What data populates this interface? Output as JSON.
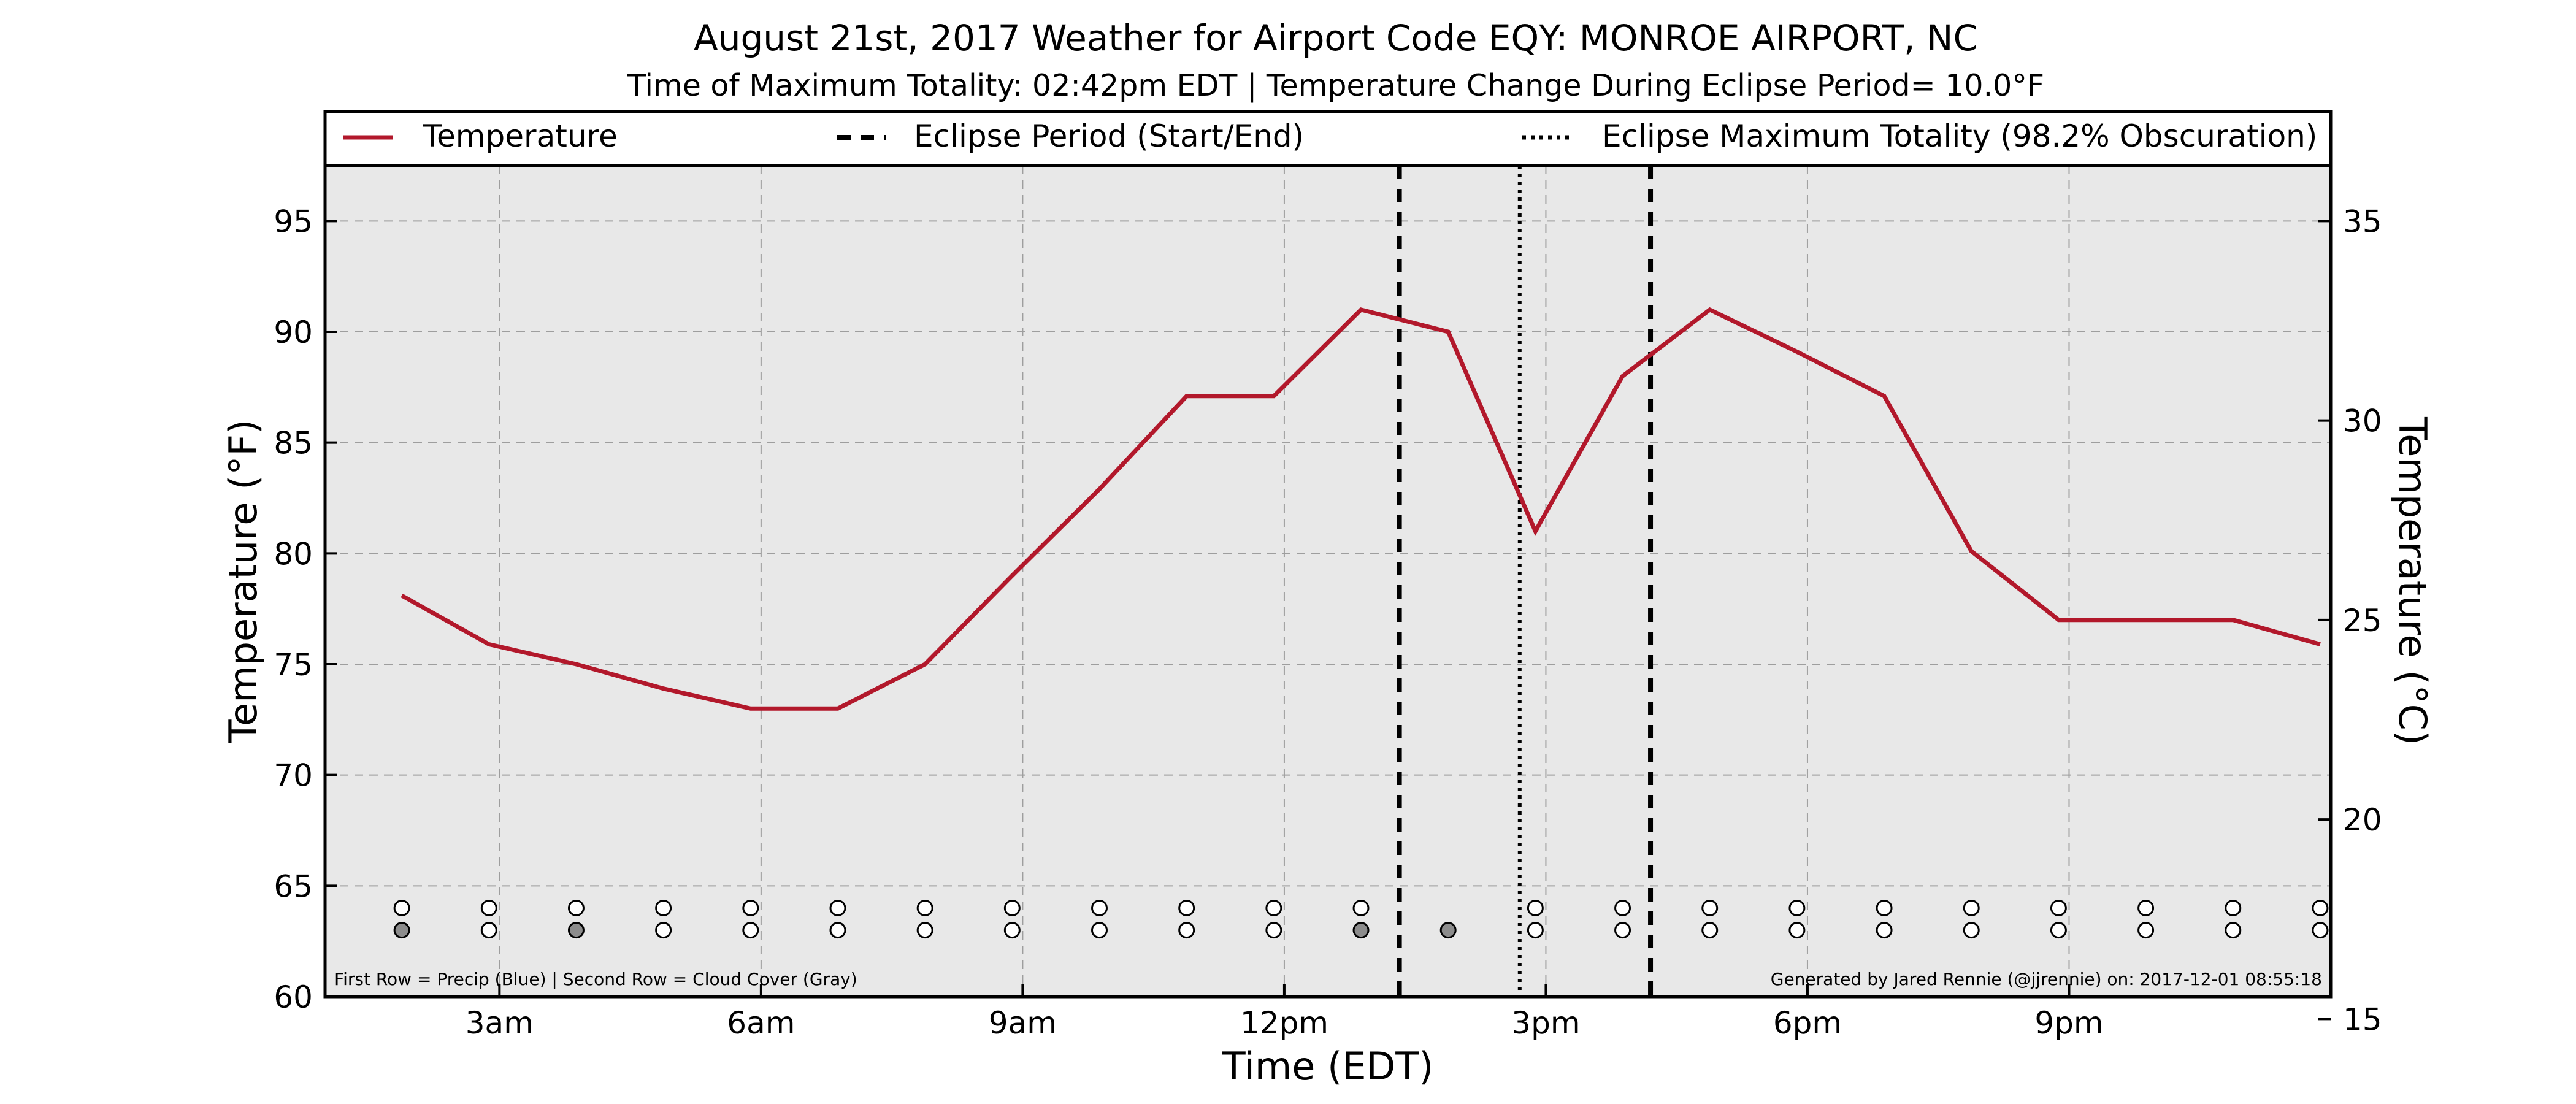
{
  "title": "August 21st, 2017 Weather for Airport Code EQY: MONROE AIRPORT, NC",
  "subtitle": "Time of Maximum Totality: 02:42pm EDT | Temperature Change During Eclipse Period= 10.0°F",
  "footnote_left": "First Row = Precip (Blue) | Second Row = Cloud Cover (Gray)",
  "footnote_right": "Generated by Jared Rennie (@jjrennie) on: 2017-12-01 08:55:18",
  "colors": {
    "temperature_line": "#b2182b",
    "plot_background": "#e8e8e8",
    "grid": "#9e9e9e",
    "cloud_filled": "#8c8c8c",
    "marker_empty": "#ffffff"
  },
  "chart_data": {
    "type": "line",
    "title": "August 21st, 2017 Weather for Airport Code EQY: MONROE AIRPORT, NC",
    "xlabel": "Time (EDT)",
    "ylabel": "Temperature (°F)",
    "ylabel_right": "Temperature (°C)",
    "xlim": [
      1.0,
      24.0
    ],
    "ylim": [
      60,
      97.5
    ],
    "ylim_right": [
      15.56,
      36.39
    ],
    "grid": true,
    "x_ticks": [
      {
        "value": 3,
        "label": "3am"
      },
      {
        "value": 6,
        "label": "6am"
      },
      {
        "value": 9,
        "label": "9am"
      },
      {
        "value": 12,
        "label": "12pm"
      },
      {
        "value": 15,
        "label": "3pm"
      },
      {
        "value": 18,
        "label": "6pm"
      },
      {
        "value": 21,
        "label": "9pm"
      }
    ],
    "y_ticks": [
      60,
      65,
      70,
      75,
      80,
      85,
      90,
      95
    ],
    "y_ticks_right": [
      15,
      20,
      25,
      30,
      35
    ],
    "legend_position": "top",
    "legend": [
      {
        "label": "Temperature",
        "style": "solid-red"
      },
      {
        "label": "Eclipse Period (Start/End)",
        "style": "dashed-black"
      },
      {
        "label": "Eclipse Maximum Totality (98.2% Obscuration)",
        "style": "dotted-black"
      }
    ],
    "series": [
      {
        "name": "Temperature",
        "x": [
          1.88,
          2.88,
          3.88,
          4.88,
          5.88,
          6.88,
          7.88,
          8.88,
          9.88,
          10.88,
          11.88,
          12.88,
          13.88,
          14.88,
          15.88,
          16.88,
          17.88,
          18.88,
          19.88,
          20.88,
          21.88,
          22.88,
          23.88
        ],
        "values": [
          78.1,
          75.9,
          75.0,
          73.9,
          73.0,
          73.0,
          75.0,
          79.0,
          82.9,
          87.1,
          87.1,
          91.0,
          90.0,
          81.0,
          88.0,
          91.0,
          89.1,
          87.1,
          80.1,
          77.0,
          77.0,
          77.0,
          75.9
        ]
      }
    ],
    "eclipse_period": [
      13.32,
      16.2
    ],
    "eclipse_max_totality": 14.7,
    "observation_rows": {
      "x": [
        1.88,
        2.88,
        3.88,
        4.88,
        5.88,
        6.88,
        7.88,
        8.88,
        9.88,
        10.88,
        11.88,
        12.88,
        13.88,
        14.88,
        15.88,
        16.88,
        17.88,
        18.88,
        19.88,
        20.88,
        21.88,
        22.88,
        23.88
      ],
      "precip_y": 64,
      "precip": [
        false,
        false,
        false,
        false,
        false,
        false,
        false,
        false,
        false,
        false,
        false,
        false,
        null,
        false,
        false,
        false,
        false,
        false,
        false,
        false,
        false,
        false,
        false
      ],
      "cloud_y": 63,
      "cloud_cover": [
        true,
        false,
        true,
        false,
        false,
        false,
        false,
        false,
        false,
        false,
        false,
        true,
        true,
        false,
        false,
        false,
        false,
        false,
        false,
        false,
        false,
        false,
        false
      ]
    }
  }
}
